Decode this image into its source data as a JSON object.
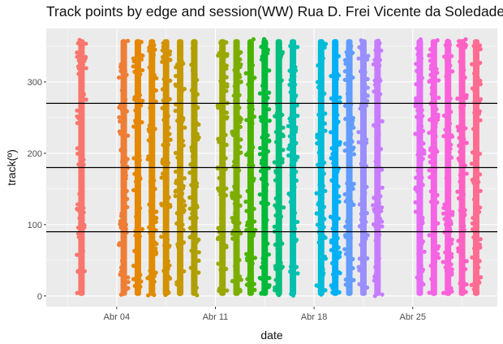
{
  "chart_data": {
    "type": "scatter",
    "title": "Track points by edge and session(WW) Rua D. Frei Vicente da Soledade",
    "xlabel": "date",
    "ylabel": "track(º)",
    "x_ticks": [
      "Abr 04",
      "Abr 11",
      "Abr 18",
      "Abr 25"
    ],
    "y_ticks": [
      0,
      100,
      200,
      300
    ],
    "xlim": [
      "2021-03-30",
      "2021-05-01"
    ],
    "ylim": [
      -15,
      375
    ],
    "grid": true,
    "legend": "none",
    "reference_lines_y": [
      90,
      180,
      270
    ],
    "y_range_per_session": [
      0,
      360
    ],
    "sessions": [
      {
        "date": "2021-04-01",
        "color": "#F8766D"
      },
      {
        "date": "2021-04-04",
        "color": "#EE7E36"
      },
      {
        "date": "2021-04-05",
        "color": "#E58700"
      },
      {
        "date": "2021-04-06",
        "color": "#DF8C00"
      },
      {
        "date": "2021-04-07",
        "color": "#D39200"
      },
      {
        "date": "2021-04-08",
        "color": "#C49A00"
      },
      {
        "date": "2021-04-09",
        "color": "#B09F00"
      },
      {
        "date": "2021-04-11",
        "color": "#9AA800"
      },
      {
        "date": "2021-04-12",
        "color": "#7CAE00"
      },
      {
        "date": "2021-04-13",
        "color": "#4CB400"
      },
      {
        "date": "2021-04-14",
        "color": "#00BA38"
      },
      {
        "date": "2021-04-15",
        "color": "#00BF7D"
      },
      {
        "date": "2021-04-16",
        "color": "#00C0AF"
      },
      {
        "date": "2021-04-18",
        "color": "#00BCD8"
      },
      {
        "date": "2021-04-19",
        "color": "#00B0F6"
      },
      {
        "date": "2021-04-20",
        "color": "#619CFF"
      },
      {
        "date": "2021-04-21",
        "color": "#9B8EFF"
      },
      {
        "date": "2021-04-22",
        "color": "#C77CFF"
      },
      {
        "date": "2021-04-25",
        "color": "#E76BF3"
      },
      {
        "date": "2021-04-26",
        "color": "#F564E3"
      },
      {
        "date": "2021-04-27",
        "color": "#FA62DB"
      },
      {
        "date": "2021-04-28",
        "color": "#FF61C3"
      },
      {
        "date": "2021-04-29",
        "color": "#FF6C91"
      }
    ],
    "colors": {
      "panel_background": "#EBEBEB",
      "grid_major": "#FFFFFF",
      "reference_line": "#000000"
    }
  }
}
